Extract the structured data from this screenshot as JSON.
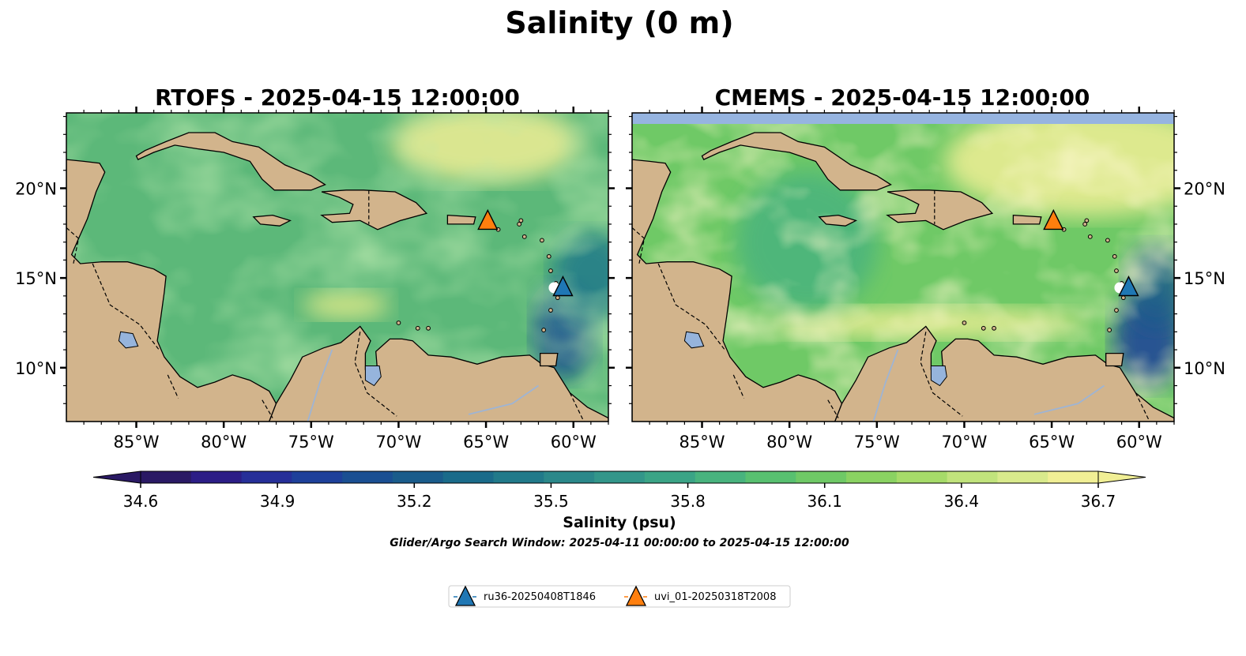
{
  "figure": {
    "title": "Salinity (0 m)",
    "search_window": "Glider/Argo Search Window: 2025-04-11 00:00:00 to 2025-04-15 12:00:00"
  },
  "maps": [
    {
      "title": "RTOFS - 2025-04-15 12:00:00",
      "model": "rtofs"
    },
    {
      "title": "CMEMS - 2025-04-15 12:00:00",
      "model": "cmems"
    }
  ],
  "axes": {
    "lon_range": [
      -89,
      -58
    ],
    "lat_range": [
      7,
      24.2
    ],
    "lon_ticks": [
      {
        "value": -85,
        "label": "85°W"
      },
      {
        "value": -80,
        "label": "80°W"
      },
      {
        "value": -75,
        "label": "75°W"
      },
      {
        "value": -70,
        "label": "70°W"
      },
      {
        "value": -65,
        "label": "65°W"
      },
      {
        "value": -60,
        "label": "60°W"
      }
    ],
    "lat_ticks": [
      {
        "value": 20,
        "label": "20°N"
      },
      {
        "value": 15,
        "label": "15°N"
      },
      {
        "value": 10,
        "label": "10°N"
      }
    ]
  },
  "colorbar": {
    "label": "Salinity (psu)",
    "min": 34.6,
    "max": 36.7,
    "ticks": [
      "34.6",
      "34.9",
      "35.2",
      "35.5",
      "35.8",
      "36.1",
      "36.4",
      "36.7"
    ],
    "colors": [
      "#2a1964",
      "#2c1d86",
      "#262f98",
      "#1e409a",
      "#1a4f92",
      "#1a5c8b",
      "#1a6b8a",
      "#217a8a",
      "#2b888a",
      "#33968a",
      "#3ba486",
      "#48b37e",
      "#58c070",
      "#6fc966",
      "#8ad262",
      "#a6db69",
      "#c1e37c",
      "#d9ea8c",
      "#f1ef95"
    ],
    "extend": "both"
  },
  "markers": [
    {
      "id": "ru36-20250408T1846",
      "label": "ru36-20250408T1846",
      "lon": -60.6,
      "lat": 14.5,
      "color": "#1f77b4"
    },
    {
      "id": "uvi_01-20250318T2008",
      "label": "uvi_01-20250318T2008",
      "lon": -64.9,
      "lat": 18.2,
      "color": "#ff7f0e"
    }
  ],
  "map_colors": {
    "land": "#d2b48c",
    "lake": "#96b4dc",
    "pacific": "#2a1964",
    "cmems_nodata": "#96b4e0"
  }
}
